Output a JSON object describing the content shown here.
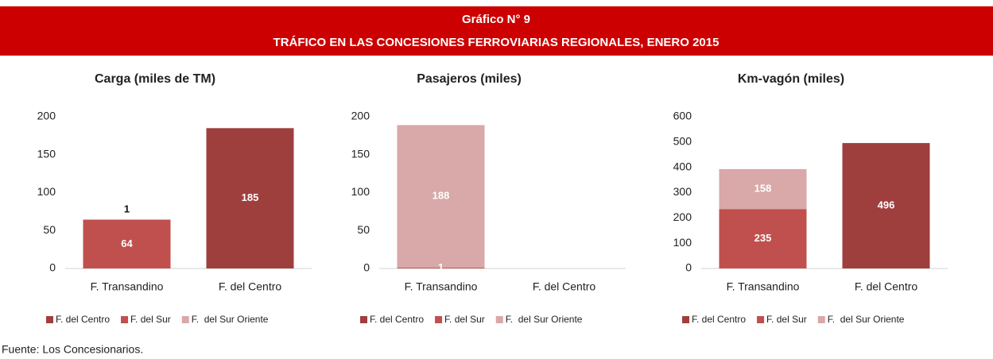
{
  "header": {
    "title": "Gráfico N° 9",
    "subtitle": "TRÁFICO EN LAS CONCESIONES FERROVIARIAS REGIONALES, ENERO 2015"
  },
  "source": "Fuente: Los Concesionarios.",
  "chart_data": [
    {
      "type": "bar",
      "stacked": true,
      "title": "Carga (miles de TM)",
      "categories": [
        "F. Transandino",
        "F. del Centro"
      ],
      "series": [
        {
          "name": "F. del Centro",
          "color": "#9e3f3e",
          "values": [
            null,
            185
          ]
        },
        {
          "name": "F. del Sur",
          "color": "#c0504d",
          "values": [
            64,
            null
          ]
        },
        {
          "name": "F.  del Sur Oriente",
          "color": "#d9a8a8",
          "values": [
            1,
            null
          ]
        }
      ],
      "ylim": [
        0,
        200
      ],
      "yticks": [
        0,
        50,
        100,
        150,
        200
      ],
      "grid": false,
      "legend": "bottom"
    },
    {
      "type": "bar",
      "stacked": true,
      "title": "Pasajeros (miles)",
      "categories": [
        "F. Transandino",
        "F. del Centro"
      ],
      "series": [
        {
          "name": "F. del Centro",
          "color": "#9e3f3e",
          "values": [
            null,
            null
          ]
        },
        {
          "name": "F. del Sur",
          "color": "#c0504d",
          "values": [
            1,
            null
          ]
        },
        {
          "name": "F.  del Sur Oriente",
          "color": "#d9a8a8",
          "values": [
            188,
            null
          ]
        }
      ],
      "ylim": [
        0,
        200
      ],
      "yticks": [
        0,
        50,
        100,
        150,
        200
      ],
      "grid": false,
      "legend": "bottom"
    },
    {
      "type": "bar",
      "stacked": true,
      "title": "Km-vagón (miles)",
      "categories": [
        "F. Transandino",
        "F. del Centro"
      ],
      "series": [
        {
          "name": "F. del Centro",
          "color": "#9e3f3e",
          "values": [
            null,
            496
          ]
        },
        {
          "name": "F. del Sur",
          "color": "#c0504d",
          "values": [
            235,
            null
          ]
        },
        {
          "name": "F.  del Sur Oriente",
          "color": "#d9a8a8",
          "values": [
            158,
            null
          ]
        }
      ],
      "ylim": [
        0,
        600
      ],
      "yticks": [
        0,
        100,
        200,
        300,
        400,
        500,
        600
      ],
      "grid": false,
      "legend": "bottom"
    }
  ]
}
